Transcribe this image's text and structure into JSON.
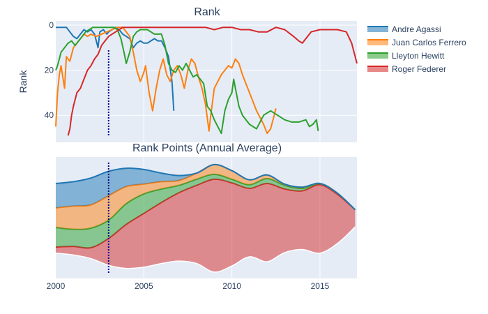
{
  "colors": {
    "plot_bg": "#e5ecf6",
    "grid": "#ffffff",
    "marker_line": "#00008b",
    "text": "#2a3f5f"
  },
  "chart_data": [
    {
      "type": "line",
      "title": "Rank",
      "ylabel": "Rank",
      "xlim": [
        2000,
        2017.1
      ],
      "ylim": [
        0,
        52
      ],
      "y_reversed": true,
      "yticks": [
        0,
        20,
        40
      ],
      "grid": true,
      "legend": "top-right",
      "vertical_marker": 2003.0,
      "series": [
        {
          "name": "Andre Agassi",
          "color": "#1f77b4",
          "points": [
            [
              2000.0,
              1
            ],
            [
              2000.3,
              1
            ],
            [
              2000.6,
              1
            ],
            [
              2000.8,
              3
            ],
            [
              2001.0,
              5
            ],
            [
              2001.2,
              6
            ],
            [
              2001.4,
              4
            ],
            [
              2001.6,
              2
            ],
            [
              2001.8,
              3
            ],
            [
              2002.0,
              2
            ],
            [
              2002.2,
              4
            ],
            [
              2002.4,
              10
            ],
            [
              2002.5,
              3
            ],
            [
              2002.7,
              2
            ],
            [
              2002.9,
              4
            ],
            [
              2003.0,
              3
            ],
            [
              2003.2,
              2
            ],
            [
              2003.4,
              1
            ],
            [
              2003.6,
              2
            ],
            [
              2003.8,
              4
            ],
            [
              2004.0,
              5
            ],
            [
              2004.2,
              6
            ],
            [
              2004.4,
              10
            ],
            [
              2004.6,
              8
            ],
            [
              2004.8,
              7
            ],
            [
              2005.0,
              8
            ],
            [
              2005.2,
              8
            ],
            [
              2005.4,
              7
            ],
            [
              2005.6,
              6
            ],
            [
              2005.8,
              7
            ],
            [
              2006.0,
              7
            ],
            [
              2006.2,
              10
            ],
            [
              2006.4,
              14
            ],
            [
              2006.6,
              25
            ],
            [
              2006.7,
              38
            ]
          ]
        },
        {
          "name": "Juan Carlos Ferrero",
          "color": "#ff7f0e",
          "points": [
            [
              2000.0,
              45
            ],
            [
              2000.1,
              30
            ],
            [
              2000.2,
              22
            ],
            [
              2000.3,
              18
            ],
            [
              2000.5,
              28
            ],
            [
              2000.6,
              14
            ],
            [
              2000.8,
              16
            ],
            [
              2001.0,
              10
            ],
            [
              2001.2,
              8
            ],
            [
              2001.4,
              6
            ],
            [
              2001.6,
              4
            ],
            [
              2001.8,
              5
            ],
            [
              2002.0,
              4
            ],
            [
              2002.3,
              5
            ],
            [
              2002.6,
              4
            ],
            [
              2002.9,
              3
            ],
            [
              2003.2,
              2
            ],
            [
              2003.5,
              1
            ],
            [
              2003.8,
              1
            ],
            [
              2004.0,
              3
            ],
            [
              2004.2,
              5
            ],
            [
              2004.4,
              12
            ],
            [
              2004.6,
              20
            ],
            [
              2004.8,
              25
            ],
            [
              2005.0,
              21
            ],
            [
              2005.1,
              18
            ],
            [
              2005.3,
              30
            ],
            [
              2005.5,
              38
            ],
            [
              2005.7,
              28
            ],
            [
              2005.9,
              20
            ],
            [
              2006.1,
              15
            ],
            [
              2006.3,
              22
            ],
            [
              2006.5,
              25
            ],
            [
              2006.7,
              20
            ],
            [
              2006.9,
              18
            ],
            [
              2007.1,
              22
            ],
            [
              2007.3,
              28
            ],
            [
              2007.5,
              20
            ],
            [
              2007.7,
              15
            ],
            [
              2007.9,
              17
            ],
            [
              2008.1,
              23
            ],
            [
              2008.3,
              28
            ],
            [
              2008.5,
              35
            ],
            [
              2008.7,
              47
            ],
            [
              2008.8,
              40
            ],
            [
              2009.0,
              28
            ],
            [
              2009.2,
              25
            ],
            [
              2009.4,
              22
            ],
            [
              2009.6,
              20
            ],
            [
              2009.8,
              18
            ],
            [
              2010.0,
              19
            ],
            [
              2010.2,
              15
            ],
            [
              2010.4,
              17
            ],
            [
              2010.6,
              22
            ],
            [
              2011.0,
              30
            ],
            [
              2011.4,
              38
            ],
            [
              2011.8,
              44
            ],
            [
              2012.0,
              48
            ],
            [
              2012.2,
              46
            ],
            [
              2012.4,
              40
            ],
            [
              2012.5,
              37
            ]
          ]
        },
        {
          "name": "Lleyton Hewitt",
          "color": "#2ca02c",
          "points": [
            [
              2000.0,
              20
            ],
            [
              2000.1,
              18
            ],
            [
              2000.2,
              15
            ],
            [
              2000.3,
              12
            ],
            [
              2000.5,
              10
            ],
            [
              2000.7,
              8
            ],
            [
              2000.9,
              7
            ],
            [
              2001.1,
              9
            ],
            [
              2001.3,
              7
            ],
            [
              2001.5,
              5
            ],
            [
              2001.7,
              3
            ],
            [
              2001.9,
              2
            ],
            [
              2002.1,
              1
            ],
            [
              2002.5,
              1
            ],
            [
              2002.9,
              1
            ],
            [
              2003.1,
              1
            ],
            [
              2003.3,
              1
            ],
            [
              2003.5,
              2
            ],
            [
              2003.7,
              6
            ],
            [
              2003.9,
              13
            ],
            [
              2004.0,
              17
            ],
            [
              2004.2,
              12
            ],
            [
              2004.4,
              5
            ],
            [
              2004.6,
              3
            ],
            [
              2004.8,
              2
            ],
            [
              2005.0,
              2
            ],
            [
              2005.2,
              2
            ],
            [
              2005.4,
              3
            ],
            [
              2005.6,
              4
            ],
            [
              2005.8,
              4
            ],
            [
              2006.0,
              4
            ],
            [
              2006.2,
              9
            ],
            [
              2006.4,
              17
            ],
            [
              2006.6,
              20
            ],
            [
              2006.8,
              21
            ],
            [
              2007.0,
              18
            ],
            [
              2007.2,
              20
            ],
            [
              2007.4,
              17
            ],
            [
              2007.6,
              20
            ],
            [
              2007.8,
              23
            ],
            [
              2008.0,
              22
            ],
            [
              2008.2,
              24
            ],
            [
              2008.4,
              26
            ],
            [
              2008.6,
              36
            ],
            [
              2008.8,
              38
            ],
            [
              2009.0,
              42
            ],
            [
              2009.2,
              45
            ],
            [
              2009.4,
              48
            ],
            [
              2009.6,
              38
            ],
            [
              2009.8,
              33
            ],
            [
              2010.0,
              30
            ],
            [
              2010.1,
              24
            ],
            [
              2010.2,
              28
            ],
            [
              2010.4,
              36
            ],
            [
              2010.6,
              40
            ],
            [
              2011.0,
              44
            ],
            [
              2011.4,
              46
            ],
            [
              2011.8,
              40
            ],
            [
              2012.2,
              38
            ],
            [
              2012.6,
              40
            ],
            [
              2013.0,
              42
            ],
            [
              2013.4,
              43
            ],
            [
              2013.8,
              43
            ],
            [
              2014.2,
              42
            ],
            [
              2014.4,
              45
            ],
            [
              2014.6,
              44
            ],
            [
              2014.8,
              42
            ],
            [
              2014.9,
              47
            ]
          ]
        },
        {
          "name": "Roger Federer",
          "color": "#d62728",
          "points": [
            [
              2000.7,
              49
            ],
            [
              2000.8,
              46
            ],
            [
              2000.9,
              40
            ],
            [
              2001.0,
              36
            ],
            [
              2001.2,
              30
            ],
            [
              2001.4,
              28
            ],
            [
              2001.6,
              24
            ],
            [
              2001.8,
              20
            ],
            [
              2002.0,
              18
            ],
            [
              2002.2,
              15
            ],
            [
              2002.4,
              13
            ],
            [
              2002.6,
              9
            ],
            [
              2002.8,
              7
            ],
            [
              2003.0,
              5
            ],
            [
              2003.2,
              4
            ],
            [
              2003.4,
              3
            ],
            [
              2003.6,
              2
            ],
            [
              2003.8,
              1
            ],
            [
              2004.0,
              1
            ],
            [
              2005.0,
              1
            ],
            [
              2006.0,
              1
            ],
            [
              2007.0,
              1
            ],
            [
              2008.0,
              1
            ],
            [
              2008.5,
              1
            ],
            [
              2009.0,
              2
            ],
            [
              2009.5,
              1
            ],
            [
              2010.0,
              1
            ],
            [
              2010.5,
              2
            ],
            [
              2011.0,
              2
            ],
            [
              2011.5,
              3
            ],
            [
              2012.0,
              3
            ],
            [
              2012.5,
              1
            ],
            [
              2013.0,
              2
            ],
            [
              2013.5,
              5
            ],
            [
              2013.8,
              7
            ],
            [
              2014.0,
              8
            ],
            [
              2014.2,
              6
            ],
            [
              2014.5,
              3
            ],
            [
              2015.0,
              2
            ],
            [
              2015.5,
              2
            ],
            [
              2016.0,
              2
            ],
            [
              2016.5,
              3
            ],
            [
              2016.8,
              8
            ],
            [
              2017.1,
              17
            ]
          ]
        }
      ]
    },
    {
      "type": "area",
      "title": "Rank Points (Annual Average)",
      "xlim": [
        2000,
        2017.1
      ],
      "xticks": [
        2000,
        2005,
        2010,
        2015
      ],
      "stacked": true,
      "centered": true,
      "grid": true,
      "vertical_marker": 2003.0,
      "x": [
        2000,
        2001,
        2002,
        2003,
        2004,
        2005,
        2006,
        2007,
        2008,
        2009,
        2010,
        2011,
        2012,
        2013,
        2014,
        2015,
        2016,
        2017
      ],
      "series": [
        {
          "name": "Andre Agassi",
          "color": "#1f77b4",
          "values": [
            10.0,
            10.0,
            11.0,
            10.0,
            7.5,
            6.0,
            3.5,
            2.0,
            0,
            0,
            0,
            0,
            0,
            0,
            0,
            0,
            0,
            0
          ]
        },
        {
          "name": "Juan Carlos Ferrero",
          "color": "#ff7f0e",
          "values": [
            8.0,
            9.5,
            9.5,
            10.0,
            7.0,
            4.0,
            3.0,
            2.0,
            2.5,
            4.0,
            3.5,
            2.0,
            1.5,
            0.5,
            0.5,
            0,
            0,
            0
          ]
        },
        {
          "name": "Lleyton Hewitt",
          "color": "#2ca02c",
          "values": [
            8.0,
            7.0,
            8.0,
            7.5,
            8.5,
            8.0,
            5.5,
            3.0,
            2.5,
            2.0,
            1.5,
            1.5,
            2.0,
            1.5,
            1.0,
            0.5,
            0.5,
            0
          ]
        },
        {
          "name": "Roger Federer",
          "color": "#d62728",
          "values": [
            2.5,
            3.5,
            4.5,
            11.0,
            18.0,
            22.0,
            25.0,
            28.0,
            32.0,
            38.0,
            34.0,
            28.0,
            32.0,
            26.0,
            24.0,
            28.0,
            20.0,
            7.0
          ]
        }
      ]
    }
  ]
}
